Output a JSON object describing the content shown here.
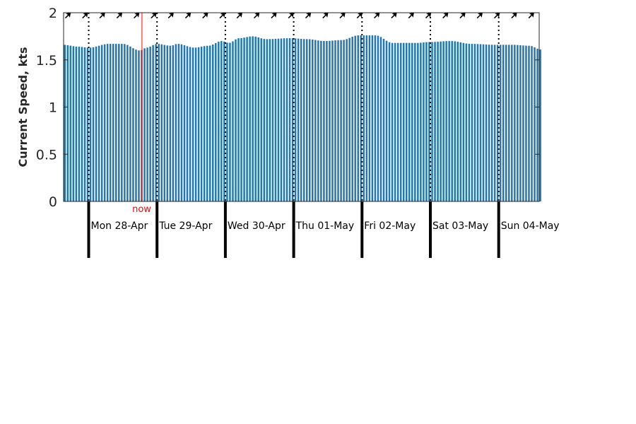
{
  "chart_data": {
    "type": "bar",
    "ylabel": "Current Speed, kts",
    "ylim": [
      0,
      2
    ],
    "yticks": [
      {
        "value": 0,
        "label": "0"
      },
      {
        "value": 0.5,
        "label": "0.5"
      },
      {
        "value": 1,
        "label": "1"
      },
      {
        "value": 1.5,
        "label": "1.5"
      },
      {
        "value": 2,
        "label": "2"
      }
    ],
    "days": [
      "Mon 28-Apr",
      "Tue 29-Apr",
      "Wed 30-Apr",
      "Thu 01-May",
      "Fri 02-May",
      "Sat 03-May",
      "Sun 04-May"
    ],
    "x_range_days": [
      -0.37,
      6.62
    ],
    "hours_per_bar": 1,
    "now": {
      "label": "now",
      "day_offset": 0.78
    },
    "series_keypoints": [
      [
        -0.37,
        1.66
      ],
      [
        -0.15,
        1.64
      ],
      [
        0.0,
        1.63
      ],
      [
        0.3,
        1.67
      ],
      [
        0.5,
        1.67
      ],
      [
        0.75,
        1.6
      ],
      [
        0.85,
        1.63
      ],
      [
        1.0,
        1.67
      ],
      [
        1.2,
        1.65
      ],
      [
        1.3,
        1.67
      ],
      [
        1.55,
        1.63
      ],
      [
        1.75,
        1.65
      ],
      [
        1.95,
        1.7
      ],
      [
        2.05,
        1.68
      ],
      [
        2.2,
        1.73
      ],
      [
        2.4,
        1.75
      ],
      [
        2.6,
        1.72
      ],
      [
        2.95,
        1.73
      ],
      [
        3.2,
        1.72
      ],
      [
        3.45,
        1.7
      ],
      [
        3.7,
        1.71
      ],
      [
        3.95,
        1.76
      ],
      [
        4.2,
        1.76
      ],
      [
        4.45,
        1.68
      ],
      [
        4.8,
        1.68
      ],
      [
        5.0,
        1.69
      ],
      [
        5.3,
        1.7
      ],
      [
        5.6,
        1.67
      ],
      [
        5.95,
        1.66
      ],
      [
        6.2,
        1.66
      ],
      [
        6.45,
        1.65
      ],
      [
        6.62,
        1.61
      ]
    ],
    "direction_arrows": {
      "count": 28,
      "angle_deg": 45
    },
    "colors": {
      "bar": "#1f77b4",
      "now_line": "#ff0000",
      "axis": "#262626",
      "day_marker": "#000000"
    },
    "grid": false
  }
}
